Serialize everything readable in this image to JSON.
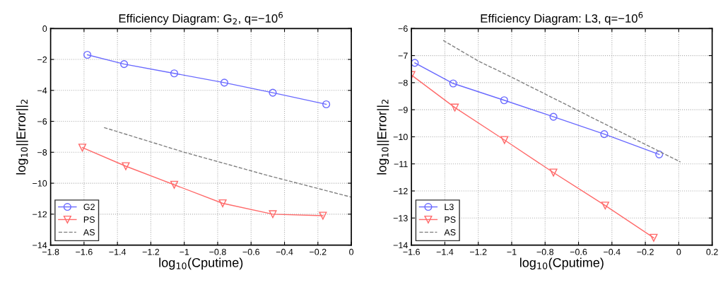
{
  "chart_data": [
    {
      "type": "line",
      "title": "Efficiency Diagram: G$_{2}$, q=−10$^{6}$",
      "xlabel": "log$_{10}$(Cputime)",
      "ylabel": "log$_{10}$||Error||$_{2}$",
      "xlim": [
        -1.8,
        0
      ],
      "xticks": [
        -1.8,
        -1.6,
        -1.4,
        -1.2,
        -1,
        -0.8,
        -0.6,
        -0.4,
        -0.2,
        0
      ],
      "ylim": [
        -14,
        0
      ],
      "yticks": [
        -14,
        -12,
        -10,
        -8,
        -6,
        -4,
        -2,
        0
      ],
      "grid": true,
      "legend": "bottom left",
      "series": [
        {
          "name": "G2",
          "color": "#6a6aff",
          "marker": "circle",
          "line_style": "solid",
          "x": [
            -1.58,
            -1.36,
            -1.06,
            -0.76,
            -0.47,
            -0.15
          ],
          "values": [
            -1.7,
            -2.3,
            -2.9,
            -3.5,
            -4.15,
            -4.9
          ]
        },
        {
          "name": "PS",
          "color": "#ff6a6a",
          "marker": "triangle",
          "line_style": "solid",
          "x": [
            -1.61,
            -1.35,
            -1.06,
            -0.77,
            -0.47,
            -0.17
          ],
          "values": [
            -7.7,
            -8.9,
            -10.1,
            -11.3,
            -12.0,
            -12.1
          ]
        },
        {
          "name": "AS",
          "color": "#808080",
          "marker": "none",
          "line_style": "dashed",
          "x": [
            -1.48,
            -1.0,
            -0.5,
            0
          ],
          "values": [
            -6.4,
            -8.0,
            -9.5,
            -10.9
          ]
        }
      ]
    },
    {
      "type": "line",
      "title": "Efficiency Diagram: L3, q=−10$^{6}$",
      "xlabel": "log$_{10}$(Cputime)",
      "ylabel": "log$_{10}$||Error||$_{2}$",
      "xlim": [
        -1.6,
        0.2
      ],
      "xticks": [
        -1.6,
        -1.4,
        -1.2,
        -1,
        -0.8,
        -0.6,
        -0.4,
        -0.2,
        0,
        0.2
      ],
      "ylim": [
        -14,
        -6
      ],
      "yticks": [
        -14,
        -13,
        -12,
        -11,
        -10,
        -9,
        -8,
        -7,
        -6
      ],
      "grid": true,
      "legend": "bottom left",
      "series": [
        {
          "name": "L3",
          "color": "#6a6aff",
          "marker": "circle",
          "line_style": "solid",
          "x": [
            -1.58,
            -1.35,
            -1.045,
            -0.75,
            -0.446,
            -0.117
          ],
          "values": [
            -7.27,
            -8.03,
            -8.65,
            -9.26,
            -9.9,
            -10.65
          ]
        },
        {
          "name": "PS",
          "color": "#ff6a6a",
          "marker": "triangle",
          "line_style": "solid",
          "x": [
            -1.6,
            -1.34,
            -1.043,
            -0.75,
            -0.44,
            -0.15
          ],
          "values": [
            -7.72,
            -8.92,
            -10.12,
            -11.32,
            -12.54,
            -13.73
          ]
        },
        {
          "name": "AS",
          "color": "#808080",
          "marker": "none",
          "line_style": "dashed",
          "x": [
            -1.41,
            -1.2,
            -1.0,
            -0.3,
            0.01
          ],
          "values": [
            -6.44,
            -7.2,
            -7.8,
            -9.97,
            -10.93
          ]
        }
      ]
    }
  ]
}
